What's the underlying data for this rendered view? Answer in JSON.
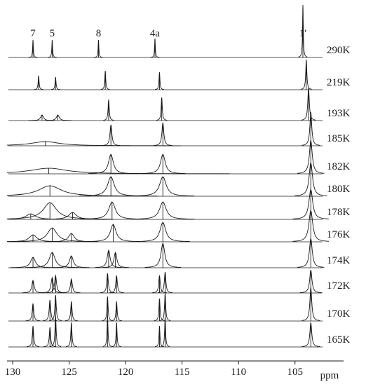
{
  "chart_data": {
    "type": "stacked-spectra",
    "xlabel": "ppm",
    "xlim": [
      130.5,
      100.7
    ],
    "xticks": [
      130,
      125,
      120,
      115,
      110,
      105
    ],
    "color": "#1a1a1a",
    "annotations": [
      {
        "text": "7",
        "x": 128.2
      },
      {
        "text": "5",
        "x": 126.5
      },
      {
        "text": "8",
        "x": 122.4
      },
      {
        "text": "4a",
        "x": 117.4
      },
      {
        "text": "1'",
        "x": 104.3
      }
    ],
    "series": [
      {
        "name": "290K",
        "x": [
          128.2,
          126.5,
          122.4,
          117.4,
          104.3
        ],
        "values": [
          25,
          25,
          25,
          27,
          75
        ],
        "widths": [
          0.04,
          0.04,
          0.04,
          0.04,
          0.04
        ]
      },
      {
        "name": "219K",
        "x": [
          127.7,
          126.2,
          121.8,
          117.0,
          104.0
        ],
        "values": [
          20,
          18,
          27,
          25,
          43
        ],
        "widths": [
          0.05,
          0.05,
          0.05,
          0.05,
          0.06
        ]
      },
      {
        "name": "193K",
        "x": [
          127.4,
          126.0,
          121.5,
          116.8,
          103.8
        ],
        "values": [
          8,
          8,
          30,
          33,
          47
        ],
        "widths": [
          0.15,
          0.15,
          0.06,
          0.06,
          0.08
        ]
      },
      {
        "name": "185K",
        "x": [
          127.1,
          121.3,
          116.7,
          103.6
        ],
        "values": [
          6,
          30,
          33,
          48
        ],
        "widths": [
          1.5,
          0.1,
          0.1,
          0.1
        ]
      },
      {
        "name": "182K",
        "x": [
          126.8,
          121.3,
          116.7,
          103.6
        ],
        "values": [
          8,
          28,
          28,
          48
        ],
        "widths": [
          2.0,
          0.25,
          0.25,
          0.15
        ]
      },
      {
        "name": "180K",
        "x": [
          126.7,
          121.3,
          116.7,
          103.6
        ],
        "values": [
          15,
          28,
          28,
          48
        ],
        "widths": [
          1.2,
          0.35,
          0.35,
          0.18
        ]
      },
      {
        "name": "178K",
        "x": [
          128.4,
          126.7,
          124.7,
          121.2,
          116.7,
          103.6
        ],
        "values": [
          8,
          24,
          10,
          25,
          25,
          43
        ],
        "widths": [
          0.5,
          0.7,
          0.4,
          0.35,
          0.35,
          0.2
        ]
      },
      {
        "name": "176K",
        "x": [
          128.2,
          126.5,
          124.8,
          121.1,
          116.7,
          103.6
        ],
        "values": [
          10,
          20,
          12,
          25,
          28,
          45
        ],
        "widths": [
          0.4,
          0.5,
          0.3,
          0.3,
          0.3,
          0.2
        ]
      },
      {
        "name": "174K",
        "x": [
          128.2,
          126.5,
          124.8,
          121.5,
          120.9,
          116.7,
          103.6
        ],
        "values": [
          15,
          22,
          17,
          25,
          22,
          35,
          42
        ],
        "widths": [
          0.25,
          0.3,
          0.2,
          0.15,
          0.15,
          0.2,
          0.15
        ]
      },
      {
        "name": "172K",
        "x": [
          128.2,
          126.5,
          126.2,
          124.8,
          121.6,
          120.8,
          117.0,
          116.5,
          103.6
        ],
        "values": [
          18,
          22,
          25,
          20,
          28,
          25,
          25,
          30,
          33
        ],
        "widths": [
          0.12,
          0.12,
          0.1,
          0.1,
          0.08,
          0.08,
          0.08,
          0.08,
          0.12
        ]
      },
      {
        "name": "170K",
        "x": [
          128.2,
          126.7,
          126.2,
          124.8,
          121.6,
          120.8,
          117.0,
          116.5,
          103.6
        ],
        "values": [
          25,
          30,
          37,
          28,
          35,
          28,
          32,
          40,
          48
        ],
        "widths": [
          0.08,
          0.08,
          0.07,
          0.07,
          0.06,
          0.06,
          0.06,
          0.06,
          0.1
        ]
      },
      {
        "name": "165K",
        "x": [
          128.2,
          126.7,
          126.2,
          124.8,
          121.6,
          120.8,
          117.0,
          116.5,
          103.6
        ],
        "values": [
          30,
          28,
          45,
          35,
          45,
          35,
          30,
          43,
          35
        ],
        "widths": [
          0.07,
          0.07,
          0.06,
          0.06,
          0.05,
          0.05,
          0.05,
          0.05,
          0.1
        ]
      }
    ]
  }
}
